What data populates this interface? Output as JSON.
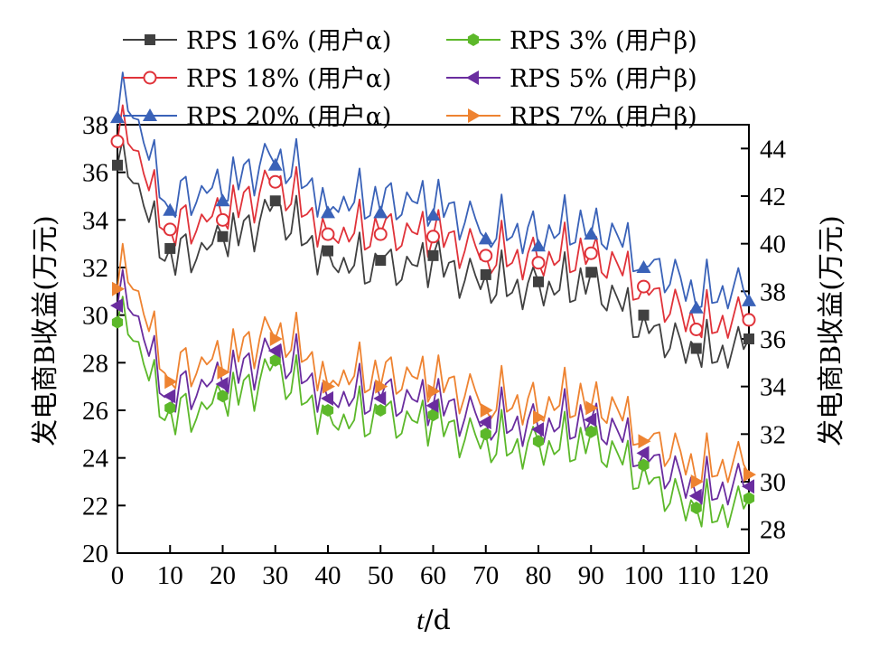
{
  "chart_data": {
    "type": "line",
    "title": "",
    "xlabel": "t/d",
    "ylabel_left": "发电商B收益(万元)",
    "ylabel_right": "发电商B收益(万元)",
    "xlim": [
      0,
      120
    ],
    "ylim_left": [
      20,
      38
    ],
    "ylim_right": [
      27,
      45
    ],
    "x_ticks": [
      0,
      10,
      20,
      30,
      40,
      50,
      60,
      70,
      80,
      90,
      100,
      110,
      120
    ],
    "y_left_ticks": [
      20,
      22,
      24,
      26,
      28,
      30,
      32,
      34,
      36,
      38
    ],
    "y_right_ticks": [
      28,
      30,
      32,
      34,
      36,
      38,
      40,
      42,
      44
    ],
    "grid": false,
    "legend_position": "top",
    "marker_x": [
      0,
      10,
      20,
      30,
      40,
      50,
      60,
      70,
      80,
      90,
      100,
      110,
      120
    ],
    "series": [
      {
        "name": "RPS 16% (用户α)",
        "axis": "left",
        "color": "#404040",
        "marker": "square",
        "values": [
          36.3,
          32.8,
          33.3,
          34.8,
          32.7,
          32.3,
          32.5,
          31.7,
          31.4,
          31.8,
          30.0,
          28.6,
          29.0
        ]
      },
      {
        "name": "RPS 18% (用户α)",
        "axis": "left",
        "color": "#e0333a",
        "marker": "circle-open",
        "values": [
          37.3,
          33.6,
          34.0,
          35.6,
          33.4,
          33.4,
          33.3,
          32.5,
          32.2,
          32.6,
          31.2,
          29.4,
          29.8
        ]
      },
      {
        "name": "RPS 20% (用户α)",
        "axis": "left",
        "color": "#3a62b8",
        "marker": "triangle-up",
        "values": [
          38.3,
          34.4,
          34.8,
          36.3,
          34.3,
          34.3,
          34.2,
          33.2,
          32.9,
          33.4,
          32.0,
          30.3,
          30.6
        ]
      },
      {
        "name": "RPS 3% (用户β)",
        "axis": "left",
        "color": "#5cb82a",
        "marker": "hexagon",
        "values": [
          29.7,
          26.1,
          26.6,
          28.1,
          26.0,
          26.0,
          25.8,
          25.0,
          24.7,
          25.1,
          23.7,
          21.9,
          22.3
        ]
      },
      {
        "name": "RPS 5% (用户β)",
        "axis": "left",
        "color": "#6a2d9f",
        "marker": "triangle-left",
        "values": [
          30.4,
          26.6,
          27.1,
          28.5,
          26.5,
          26.5,
          26.2,
          25.5,
          25.2,
          25.6,
          24.2,
          22.4,
          22.8
        ]
      },
      {
        "name": "RPS 7% (用户β)",
        "axis": "left",
        "color": "#ee8331",
        "marker": "triangle-right",
        "values": [
          31.1,
          27.2,
          27.6,
          29.0,
          27.0,
          27.0,
          26.8,
          26.0,
          25.7,
          26.1,
          24.7,
          23.0,
          23.3
        ]
      }
    ]
  }
}
